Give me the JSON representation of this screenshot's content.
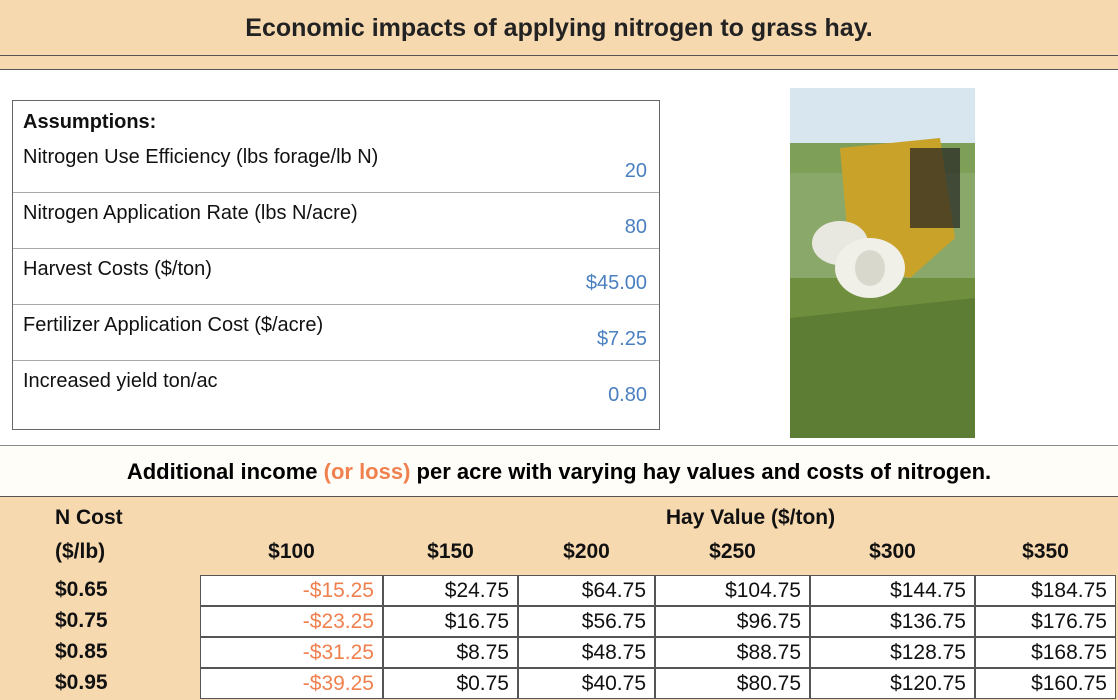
{
  "header": {
    "title": "Economic impacts of applying nitrogen to grass hay."
  },
  "assumptions": {
    "title": "Assumptions:",
    "items": [
      {
        "label": "Nitrogen Use Efficiency (lbs forage/lb N)",
        "value": "20"
      },
      {
        "label": "Nitrogen Application Rate (lbs N/acre)",
        "value": "80"
      },
      {
        "label": "Harvest Costs ($/ton)",
        "value": "$45.00"
      },
      {
        "label": "Fertilizer Application Cost ($/acre)",
        "value": "$7.25"
      },
      {
        "label": "Increased yield ton/ac",
        "value": "0.80"
      }
    ]
  },
  "table": {
    "caption": [
      "Additional income ",
      "(or loss)",
      " per acre with varying hay values and costs of nitrogen."
    ],
    "row_header": [
      "N Cost",
      "($/lb)"
    ],
    "group_header": "Hay Value ($/ton)",
    "columns": [
      "$100",
      "$150",
      "$200",
      "$250",
      "$300",
      "$350"
    ],
    "rows": [
      {
        "label": "$0.65",
        "cells": [
          "-$15.25",
          "$24.75",
          "$64.75",
          "$104.75",
          "$144.75",
          "$184.75"
        ]
      },
      {
        "label": "$0.75",
        "cells": [
          "-$23.25",
          "$16.75",
          "$56.75",
          "$96.75",
          "$136.75",
          "$176.75"
        ]
      },
      {
        "label": "$0.85",
        "cells": [
          "-$31.25",
          "$8.75",
          "$48.75",
          "$88.75",
          "$128.75",
          "$168.75"
        ]
      },
      {
        "label": "$0.95",
        "cells": [
          "-$39.25",
          "$0.75",
          "$40.75",
          "$80.75",
          "$120.75",
          "$160.75"
        ]
      }
    ]
  }
}
